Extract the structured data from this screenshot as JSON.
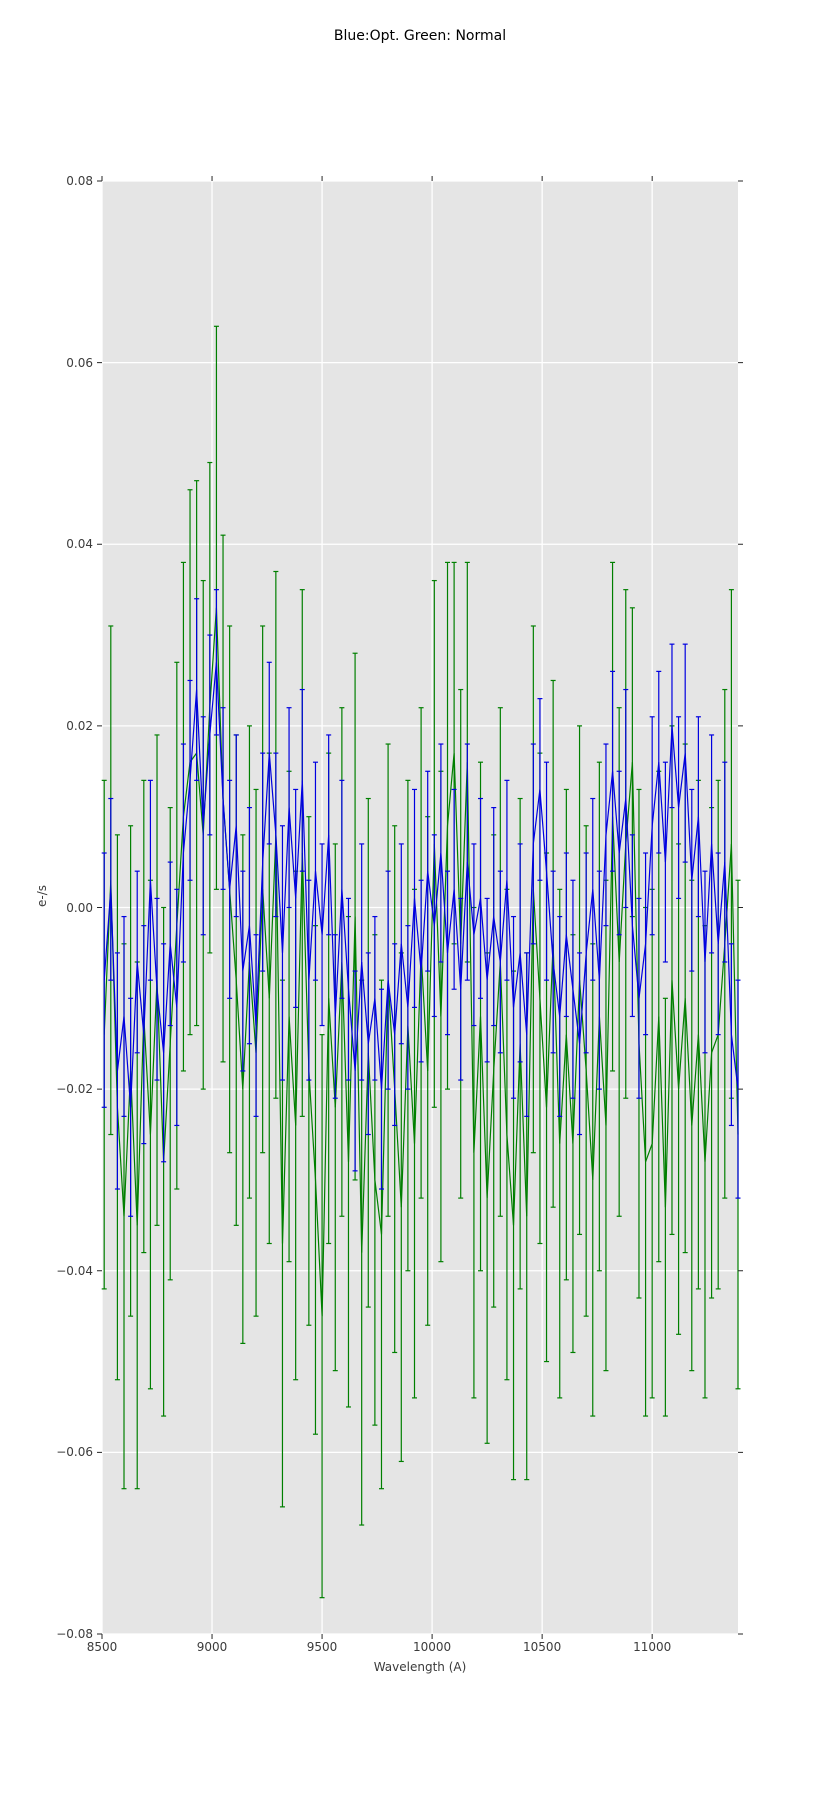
{
  "figure": {
    "title": "Blue:Opt. Green: Normal",
    "xlabel": "Wavelength (A)",
    "ylabel": "e-/s"
  },
  "style": {
    "figure_bg": "#ffffff",
    "plot_bg": "#e5e5e5",
    "grid_color": "#ffffff",
    "tick_color": "#262626",
    "blue_series_color": "#0000e0",
    "green_series_color": "#007f00"
  },
  "chart_data": {
    "type": "line",
    "subtype": "errorbar",
    "title": "Blue:Opt. Green: Normal",
    "xlabel": "Wavelength (A)",
    "ylabel": "e-/s",
    "xlim": [
      8500,
      11390
    ],
    "ylim": [
      -0.08,
      0.08
    ],
    "xticks": [
      8500,
      9000,
      9500,
      10000,
      10500,
      11000
    ],
    "xtick_labels": [
      "8500",
      "9000",
      "9500",
      "10000",
      "10500",
      "11000"
    ],
    "yticks": [
      0.08,
      0.06,
      0.04,
      0.02,
      0.0,
      -0.02,
      -0.04,
      -0.06,
      -0.08
    ],
    "ytick_labels": [
      "0.08",
      "0.06",
      "0.04",
      "0.02",
      "0.00",
      "−0.02",
      "−0.04",
      "−0.06",
      "−0.08"
    ],
    "grid": true,
    "legend_position": "none",
    "unit_scale": 0.001,
    "x": [
      8510,
      8540,
      8570,
      8600,
      8630,
      8660,
      8690,
      8720,
      8750,
      8780,
      8810,
      8840,
      8870,
      8900,
      8930,
      8960,
      8990,
      9020,
      9050,
      9080,
      9110,
      9140,
      9170,
      9200,
      9230,
      9260,
      9290,
      9320,
      9350,
      9380,
      9410,
      9440,
      9470,
      9500,
      9530,
      9560,
      9590,
      9620,
      9650,
      9680,
      9710,
      9740,
      9770,
      9800,
      9830,
      9860,
      9890,
      9920,
      9950,
      9980,
      10010,
      10040,
      10070,
      10100,
      10130,
      10160,
      10190,
      10220,
      10250,
      10280,
      10310,
      10340,
      10370,
      10400,
      10430,
      10460,
      10490,
      10520,
      10550,
      10580,
      10610,
      10640,
      10670,
      10700,
      10730,
      10760,
      10790,
      10820,
      10850,
      10880,
      10910,
      10940,
      10970,
      11000,
      11030,
      11060,
      11090,
      11120,
      11150,
      11180,
      11210,
      11240,
      11270,
      11300,
      11330,
      11360,
      11390
    ],
    "series": [
      {
        "name": "Opt",
        "color": "#0000e0",
        "y_milli": [
          -8,
          2,
          -18,
          -12,
          -22,
          -6,
          -14,
          3,
          -9,
          -16,
          -4,
          -11,
          6,
          14,
          24,
          9,
          19,
          27,
          12,
          2,
          9,
          -7,
          -2,
          -13,
          5,
          17,
          8,
          -5,
          11,
          1,
          14,
          -8,
          4,
          -3,
          8,
          -12,
          2,
          -9,
          -18,
          -6,
          -15,
          -10,
          -20,
          -8,
          -14,
          -4,
          -11,
          1,
          -7,
          4,
          -2,
          6,
          -5,
          2,
          -9,
          5,
          -3,
          1,
          -8,
          -1,
          -6,
          3,
          -11,
          -5,
          -14,
          7,
          13,
          4,
          -6,
          -12,
          -3,
          -9,
          -15,
          -5,
          2,
          -8,
          8,
          15,
          6,
          12,
          -2,
          -10,
          -4,
          9,
          16,
          5,
          20,
          11,
          17,
          3,
          10,
          -6,
          7,
          -4,
          5,
          -14,
          -20
        ],
        "yerr_milli": [
          14,
          10,
          13,
          11,
          12,
          10,
          12,
          11,
          10,
          12,
          9,
          13,
          12,
          11,
          10,
          12,
          11,
          8,
          10,
          12,
          10,
          11,
          13,
          10,
          12,
          10,
          9,
          14,
          11,
          12,
          10,
          11,
          12,
          10,
          11,
          9,
          12,
          10,
          11,
          13,
          10,
          9,
          11,
          12,
          10,
          11,
          9,
          12,
          10,
          11,
          10,
          12,
          9,
          11,
          10,
          13,
          10,
          11,
          9,
          12,
          10,
          11,
          10,
          12,
          9,
          11,
          10,
          12,
          10,
          11,
          9,
          12,
          10,
          11,
          10,
          12,
          10,
          11,
          9,
          12,
          10,
          11,
          10,
          12,
          10,
          11,
          9,
          10,
          12,
          10,
          11,
          10,
          12,
          10,
          11,
          10,
          12
        ]
      },
      {
        "name": "Normal",
        "color": "#007f00",
        "y_milli": [
          -14,
          3,
          -22,
          -34,
          -18,
          -35,
          -12,
          -25,
          -8,
          -28,
          -15,
          -2,
          10,
          16,
          17,
          8,
          22,
          33,
          12,
          2,
          -8,
          -20,
          -6,
          -16,
          2,
          -10,
          8,
          -37,
          -12,
          -24,
          6,
          -18,
          -30,
          -45,
          -10,
          -22,
          -6,
          -28,
          -1,
          -38,
          -16,
          -30,
          -36,
          -8,
          -20,
          -33,
          -13,
          -26,
          -5,
          -18,
          7,
          -12,
          9,
          17,
          -4,
          16,
          -27,
          -12,
          -32,
          -18,
          -6,
          -25,
          -35,
          -15,
          -34,
          2,
          -10,
          -22,
          -4,
          -26,
          -14,
          -26,
          -8,
          -18,
          -30,
          -12,
          -24,
          10,
          -6,
          7,
          16,
          -15,
          -28,
          -26,
          -12,
          -33,
          -8,
          -20,
          -10,
          -24,
          -14,
          -28,
          -16,
          -14,
          -4,
          7,
          -25
        ],
        "yerr_milli": [
          28,
          28,
          30,
          30,
          27,
          29,
          26,
          28,
          27,
          28,
          26,
          29,
          28,
          30,
          30,
          28,
          27,
          31,
          29,
          29,
          27,
          28,
          26,
          29,
          29,
          27,
          29,
          29,
          27,
          28,
          29,
          28,
          28,
          31,
          27,
          29,
          28,
          27,
          29,
          30,
          28,
          27,
          28,
          26,
          29,
          28,
          27,
          28,
          27,
          28,
          29,
          27,
          29,
          21,
          28,
          22,
          27,
          28,
          27,
          26,
          28,
          27,
          28,
          27,
          29,
          29,
          27,
          28,
          29,
          28,
          27,
          23,
          28,
          27,
          26,
          28,
          27,
          28,
          28,
          28,
          17,
          28,
          28,
          28,
          27,
          23,
          28,
          27,
          28,
          27,
          28,
          26,
          27,
          28,
          28,
          28,
          28
        ]
      }
    ]
  },
  "layout_note": "single axes, no legend, ticks on all four sides"
}
